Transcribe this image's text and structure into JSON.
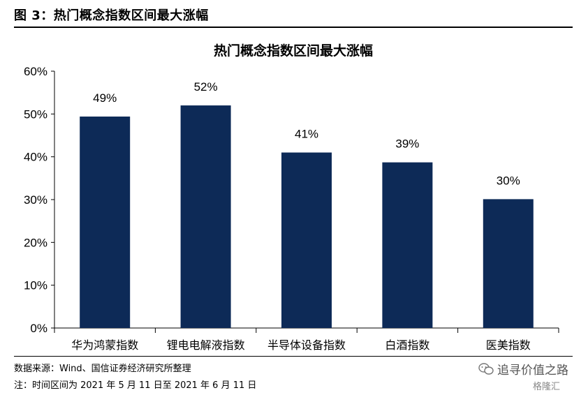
{
  "figure_title": "图 3：热门概念指数区间最大涨幅",
  "source_note": "数据来源：Wind、国信证券经济研究所整理",
  "date_note": "注：时间区间为 2021 年 5 月 11 日至 2021 年 6 月 11 日",
  "watermark": "追寻价值之路",
  "watermark2": "格隆汇",
  "chart_data": {
    "type": "bar",
    "title": "热门概念指数区间最大涨幅",
    "categories": [
      "华为鸿蒙指数",
      "锂电电解液指数",
      "半导体设备指数",
      "白酒指数",
      "医美指数"
    ],
    "values": [
      49.4,
      52.0,
      41.0,
      38.7,
      30.1
    ],
    "data_labels": [
      "49%",
      "52%",
      "41%",
      "39%",
      "30%"
    ],
    "ylim": [
      0,
      60
    ],
    "yticks": [
      "0%",
      "10%",
      "20%",
      "30%",
      "40%",
      "50%",
      "60%"
    ],
    "ytick_values": [
      0,
      10,
      20,
      30,
      40,
      50,
      60
    ],
    "xlabel": "",
    "ylabel": "",
    "grid": false,
    "bar_color": "#0d2a57"
  }
}
